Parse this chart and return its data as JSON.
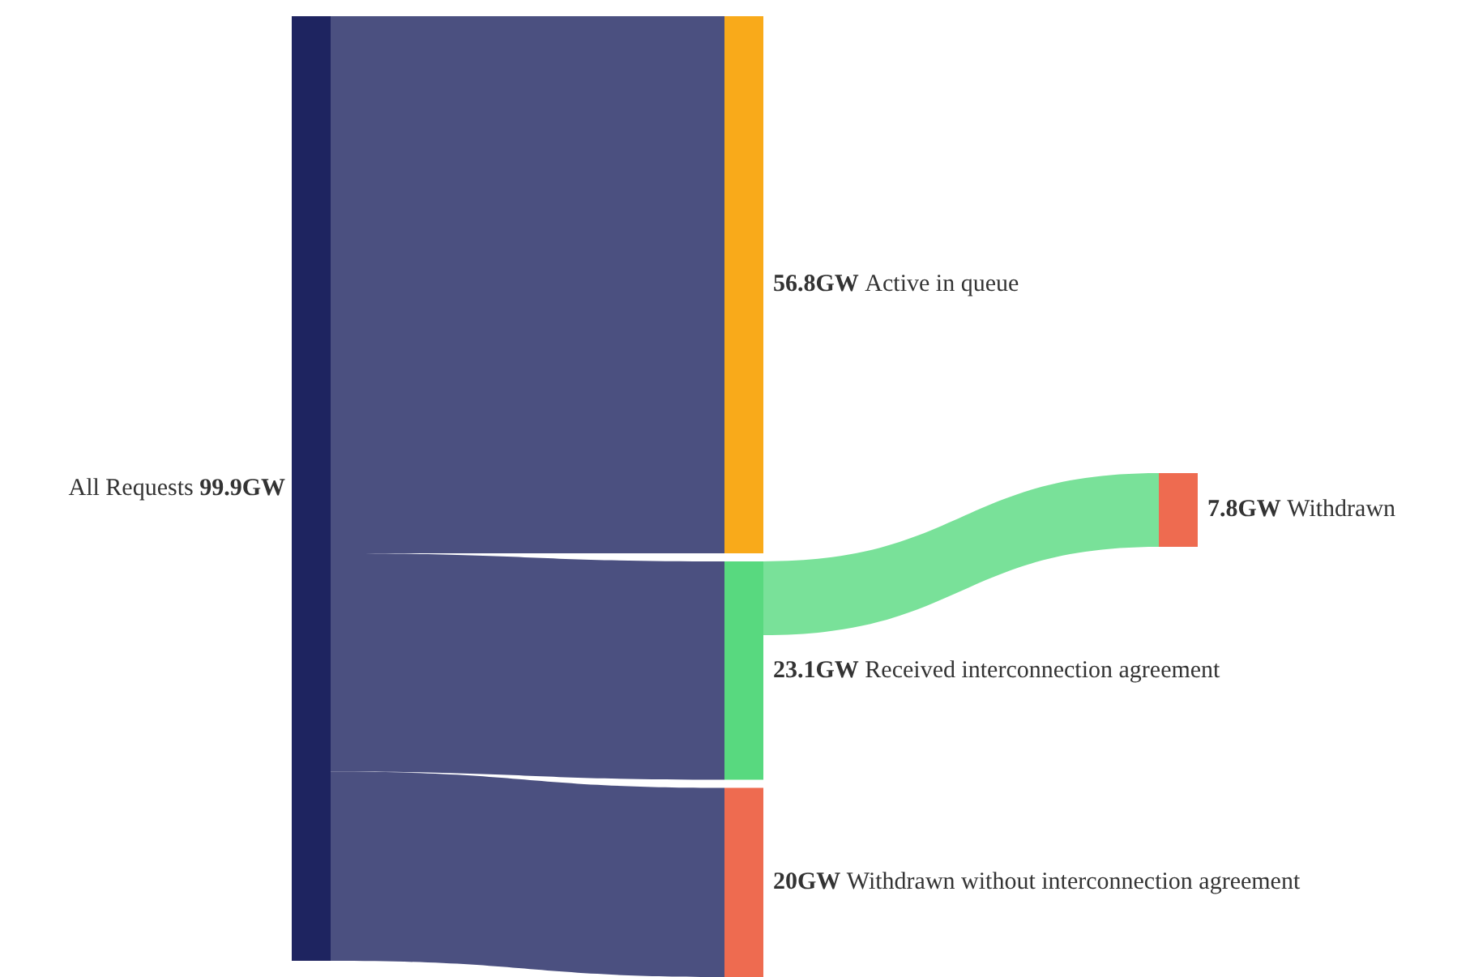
{
  "chart_data": {
    "type": "other",
    "categories": [
      "All Requests",
      "Active in queue",
      "Received interconnection agreement",
      "Withdrawn",
      "Withdrawn without interconnection agreement"
    ],
    "values": [
      99.9,
      56.8,
      23.1,
      7.8,
      20
    ],
    "value_labels": [
      "99.9GW",
      "56.8GW",
      "23.1GW",
      "7.8GW",
      "20GW"
    ],
    "colors": [
      "#1e2460",
      "#f9aa1a",
      "#58d97f",
      "#ee6b50",
      "#ee6b50"
    ]
  }
}
